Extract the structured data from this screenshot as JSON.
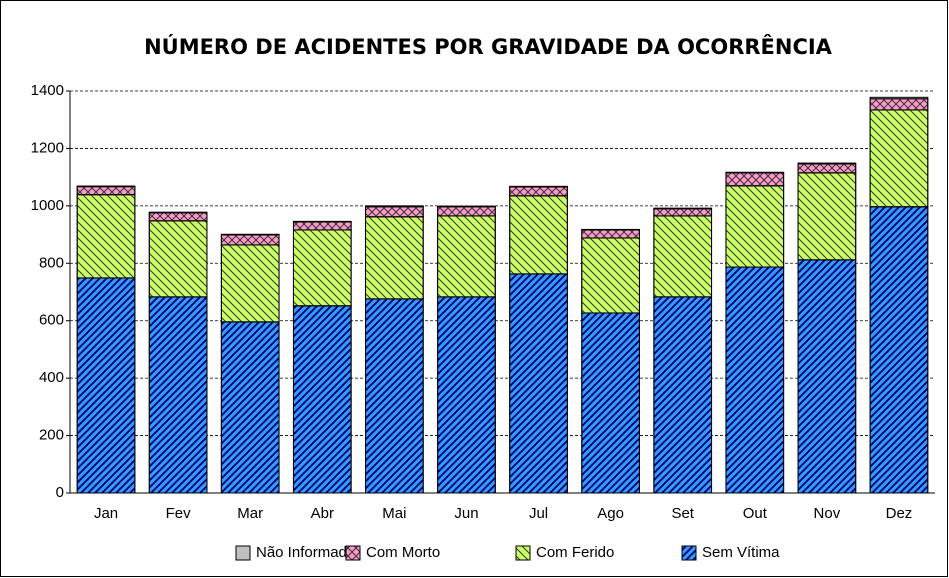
{
  "chart_data": {
    "type": "stacked_bar",
    "title": "NÚMERO DE ACIDENTES POR GRAVIDADE DA OCORRÊNCIA",
    "categories": [
      "Jan",
      "Fev",
      "Mar",
      "Abr",
      "Mai",
      "Jun",
      "Jul",
      "Ago",
      "Set",
      "Out",
      "Nov",
      "Dez"
    ],
    "series": [
      {
        "name": "Não Informado",
        "color": "#c0c0c0",
        "values": [
          2,
          2,
          2,
          2,
          3,
          2,
          2,
          2,
          2,
          2,
          3,
          5
        ]
      },
      {
        "name": "Com Morto",
        "color": "#ff99cc",
        "values": [
          28,
          28,
          35,
          28,
          35,
          32,
          31,
          28,
          25,
          45,
          31,
          39
        ]
      },
      {
        "name": "Com Ferido",
        "color": "#ccff66",
        "values": [
          290,
          265,
          268,
          264,
          286,
          282,
          272,
          261,
          282,
          283,
          303,
          337
        ]
      },
      {
        "name": "Sem Vítima",
        "color": "#3399ff",
        "values": [
          749,
          683,
          596,
          652,
          676,
          683,
          763,
          627,
          683,
          787,
          812,
          997
        ]
      }
    ],
    "ylim": [
      0,
      1400
    ],
    "yticks": [
      0,
      200,
      400,
      600,
      800,
      1000,
      1200,
      1400
    ],
    "grid": true,
    "legend": "bottom"
  }
}
